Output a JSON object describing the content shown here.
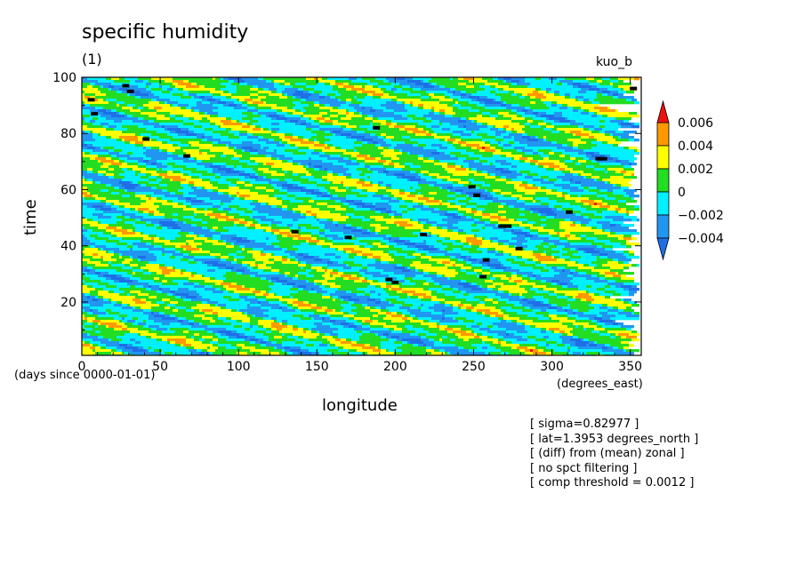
{
  "header": {
    "title": "specific humidity",
    "subtitle": "(1)",
    "run_name": "kuo_b"
  },
  "notes": [
    "[ sigma=0.82977 ]",
    "[ lat=1.3953 degrees_north ]",
    "[ (diff) from (mean) zonal ]",
    "[ no spct filtering ]",
    "[ comp threshold = 0.0012 ]"
  ],
  "chart_data": {
    "type": "heatmap",
    "title": "specific humidity",
    "xlabel": "longitude",
    "ylabel": "time",
    "x_units": "(degrees_east)",
    "y_units": "(days since 0000-01-01)",
    "xlim": [
      0,
      357
    ],
    "ylim": [
      1,
      100
    ],
    "x_ticks": [
      "0",
      "50",
      "100",
      "150",
      "200",
      "250",
      "300",
      "350"
    ],
    "y_ticks": [
      "20",
      "40",
      "60",
      "80",
      "100"
    ],
    "colorbar": {
      "labels": [
        "0.006",
        "0.004",
        "0.002",
        "0",
        "-0.002",
        "-0.004"
      ],
      "bands": [
        {
          "min": -0.006,
          "max": -0.004,
          "color": "#1e6fe6"
        },
        {
          "min": -0.004,
          "max": -0.002,
          "color": "#2196f0"
        },
        {
          "min": -0.002,
          "max": 0,
          "color": "#00f0ff"
        },
        {
          "min": 0,
          "max": 0.002,
          "color": "#22dd22"
        },
        {
          "min": 0.002,
          "max": 0.004,
          "color": "#ffff00"
        },
        {
          "min": 0.004,
          "max": 0.006,
          "color": "#ff9900"
        },
        {
          "min": 0.006,
          "max": 0.008,
          "color": "#ee1111"
        }
      ],
      "under_color": "#1e6fe6",
      "over_color": "#ee1111"
    },
    "pattern": "westward-propagating anomaly bands",
    "threshold_marker_color": "#000000"
  }
}
